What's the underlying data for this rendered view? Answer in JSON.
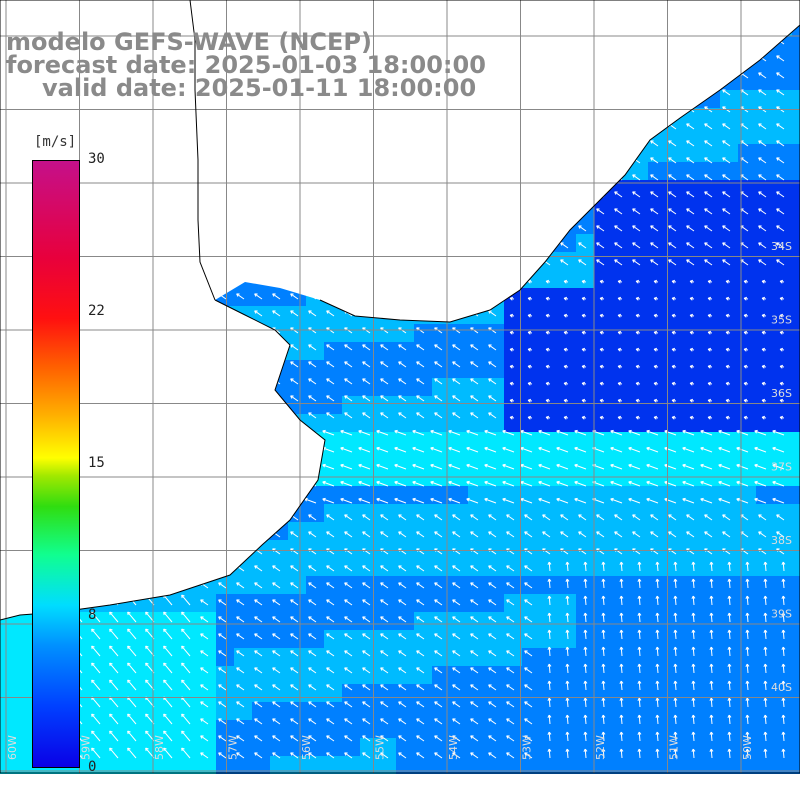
{
  "title": {
    "line1": "modelo GEFS-WAVE (NCEP)",
    "line2": "forecast date: 2025-01-03 18:00:00",
    "line3": "valid date: 2025-01-11 18:00:00"
  },
  "legend": {
    "unit": "[m/s]",
    "ticks": [
      {
        "label": "30",
        "value": 30
      },
      {
        "label": "22",
        "value": 22
      },
      {
        "label": "15",
        "value": 15
      },
      {
        "label": "8",
        "value": 8
      },
      {
        "label": "0",
        "value": 0
      }
    ],
    "range": [
      0,
      30
    ]
  },
  "lat_labels": [
    "34S",
    "35S",
    "36S",
    "37S",
    "38S",
    "39S",
    "40S"
  ],
  "lon_labels": [
    "60W",
    "59W",
    "58W",
    "57W",
    "56W",
    "55W",
    "54W",
    "53W",
    "52W",
    "51W",
    "50W"
  ],
  "colors": {
    "ocean_calm": "#0033ee",
    "ocean_low": "#0080ff",
    "ocean_mid": "#00bbff",
    "ocean_high": "#00e8ff",
    "land": "#ffffff",
    "coastline": "#000000",
    "grid": "#888888",
    "arrow": "#ffffff"
  },
  "wind_field": {
    "description_unit": "m/s",
    "dominant_direction": "from east / southeast toward northwest and west",
    "speed_range": [
      0,
      9
    ]
  }
}
